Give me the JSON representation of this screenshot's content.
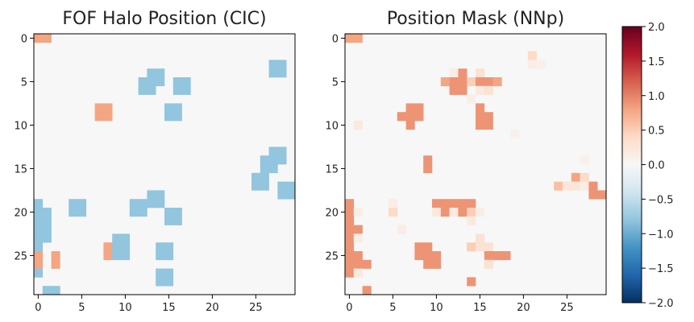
{
  "chart_data": [
    {
      "type": "heatmap",
      "title": "FOF Halo Position (CIC)",
      "shape": [
        30,
        30
      ],
      "background_value": 0,
      "x_ticks": [
        "0",
        "5",
        "10",
        "15",
        "20",
        "25"
      ],
      "y_ticks": [
        "0",
        "5",
        "10",
        "15",
        "20",
        "25"
      ],
      "cells": [
        {
          "row": 0,
          "col": 0,
          "value": 0.8
        },
        {
          "row": 0,
          "col": 1,
          "value": 0.8
        },
        {
          "row": 3,
          "col": 27,
          "value": -0.8
        },
        {
          "row": 3,
          "col": 28,
          "value": -0.8
        },
        {
          "row": 4,
          "col": 13,
          "value": -0.8
        },
        {
          "row": 4,
          "col": 14,
          "value": -0.8
        },
        {
          "row": 4,
          "col": 27,
          "value": -0.8
        },
        {
          "row": 4,
          "col": 28,
          "value": -0.8
        },
        {
          "row": 5,
          "col": 12,
          "value": -0.8
        },
        {
          "row": 5,
          "col": 13,
          "value": -0.8
        },
        {
          "row": 5,
          "col": 14,
          "value": -0.8
        },
        {
          "row": 5,
          "col": 16,
          "value": -0.8
        },
        {
          "row": 5,
          "col": 17,
          "value": -0.8
        },
        {
          "row": 6,
          "col": 12,
          "value": -0.8
        },
        {
          "row": 6,
          "col": 13,
          "value": -0.8
        },
        {
          "row": 6,
          "col": 16,
          "value": -0.8
        },
        {
          "row": 6,
          "col": 17,
          "value": -0.8
        },
        {
          "row": 8,
          "col": 7,
          "value": 0.8
        },
        {
          "row": 8,
          "col": 8,
          "value": 0.8
        },
        {
          "row": 8,
          "col": 15,
          "value": -0.8
        },
        {
          "row": 8,
          "col": 16,
          "value": -0.8
        },
        {
          "row": 9,
          "col": 7,
          "value": 0.8
        },
        {
          "row": 9,
          "col": 8,
          "value": 0.8
        },
        {
          "row": 9,
          "col": 15,
          "value": -0.8
        },
        {
          "row": 9,
          "col": 16,
          "value": -0.8
        },
        {
          "row": 13,
          "col": 27,
          "value": -0.8
        },
        {
          "row": 13,
          "col": 28,
          "value": -0.8
        },
        {
          "row": 14,
          "col": 26,
          "value": -0.8
        },
        {
          "row": 14,
          "col": 27,
          "value": -0.8
        },
        {
          "row": 14,
          "col": 28,
          "value": -0.8
        },
        {
          "row": 15,
          "col": 26,
          "value": -0.8
        },
        {
          "row": 15,
          "col": 27,
          "value": -0.8
        },
        {
          "row": 16,
          "col": 25,
          "value": -0.8
        },
        {
          "row": 16,
          "col": 26,
          "value": -0.8
        },
        {
          "row": 17,
          "col": 25,
          "value": -0.8
        },
        {
          "row": 17,
          "col": 26,
          "value": -0.8
        },
        {
          "row": 17,
          "col": 28,
          "value": -0.8
        },
        {
          "row": 17,
          "col": 29,
          "value": -0.8
        },
        {
          "row": 18,
          "col": 13,
          "value": -0.8
        },
        {
          "row": 18,
          "col": 14,
          "value": -0.8
        },
        {
          "row": 18,
          "col": 28,
          "value": -0.8
        },
        {
          "row": 18,
          "col": 29,
          "value": -0.8
        },
        {
          "row": 19,
          "col": 0,
          "value": -0.8
        },
        {
          "row": 19,
          "col": 4,
          "value": -0.8
        },
        {
          "row": 19,
          "col": 5,
          "value": -0.8
        },
        {
          "row": 19,
          "col": 11,
          "value": -0.8
        },
        {
          "row": 19,
          "col": 12,
          "value": -0.8
        },
        {
          "row": 19,
          "col": 13,
          "value": -0.8
        },
        {
          "row": 19,
          "col": 14,
          "value": -0.8
        },
        {
          "row": 20,
          "col": 0,
          "value": -0.8
        },
        {
          "row": 20,
          "col": 1,
          "value": -0.8
        },
        {
          "row": 20,
          "col": 4,
          "value": -0.8
        },
        {
          "row": 20,
          "col": 5,
          "value": -0.8
        },
        {
          "row": 20,
          "col": 11,
          "value": -0.8
        },
        {
          "row": 20,
          "col": 12,
          "value": -0.8
        },
        {
          "row": 20,
          "col": 15,
          "value": -0.8
        },
        {
          "row": 20,
          "col": 16,
          "value": -0.8
        },
        {
          "row": 21,
          "col": 0,
          "value": -0.8
        },
        {
          "row": 21,
          "col": 1,
          "value": -0.8
        },
        {
          "row": 21,
          "col": 15,
          "value": -0.8
        },
        {
          "row": 21,
          "col": 16,
          "value": -0.8
        },
        {
          "row": 22,
          "col": 0,
          "value": -0.8
        },
        {
          "row": 22,
          "col": 1,
          "value": -0.8
        },
        {
          "row": 23,
          "col": 0,
          "value": -0.8
        },
        {
          "row": 23,
          "col": 1,
          "value": -0.8
        },
        {
          "row": 23,
          "col": 9,
          "value": -0.8
        },
        {
          "row": 23,
          "col": 10,
          "value": -0.8
        },
        {
          "row": 24,
          "col": 0,
          "value": -0.8
        },
        {
          "row": 24,
          "col": 8,
          "value": 0.8
        },
        {
          "row": 24,
          "col": 9,
          "value": -0.8
        },
        {
          "row": 24,
          "col": 10,
          "value": -0.8
        },
        {
          "row": 24,
          "col": 14,
          "value": -0.8
        },
        {
          "row": 24,
          "col": 15,
          "value": -0.8
        },
        {
          "row": 25,
          "col": 0,
          "value": 0.8
        },
        {
          "row": 25,
          "col": 2,
          "value": 0.8
        },
        {
          "row": 25,
          "col": 8,
          "value": 0.8
        },
        {
          "row": 25,
          "col": 9,
          "value": -0.8
        },
        {
          "row": 25,
          "col": 10,
          "value": -0.8
        },
        {
          "row": 25,
          "col": 14,
          "value": -0.8
        },
        {
          "row": 25,
          "col": 15,
          "value": -0.8
        },
        {
          "row": 26,
          "col": 0,
          "value": 0.8
        },
        {
          "row": 26,
          "col": 2,
          "value": 0.8
        },
        {
          "row": 27,
          "col": 0,
          "value": -0.8
        },
        {
          "row": 27,
          "col": 14,
          "value": -0.8
        },
        {
          "row": 27,
          "col": 15,
          "value": -0.8
        },
        {
          "row": 28,
          "col": 14,
          "value": -0.8
        },
        {
          "row": 28,
          "col": 15,
          "value": -0.8
        },
        {
          "row": 29,
          "col": 1,
          "value": -0.8
        },
        {
          "row": 29,
          "col": 2,
          "value": -0.8
        }
      ]
    },
    {
      "type": "heatmap",
      "title": "Position Mask (NNp)",
      "shape": [
        30,
        30
      ],
      "background_value": 0,
      "x_ticks": [
        "0",
        "5",
        "10",
        "15",
        "20",
        "25"
      ],
      "y_ticks": [
        "0",
        "5",
        "10",
        "15",
        "20",
        "25"
      ],
      "cells": [
        {
          "row": 0,
          "col": 0,
          "value": 0.8
        },
        {
          "row": 0,
          "col": 1,
          "value": 0.8
        },
        {
          "row": 2,
          "col": 21,
          "value": 0.4
        },
        {
          "row": 3,
          "col": 21,
          "value": 0.15
        },
        {
          "row": 3,
          "col": 22,
          "value": 0.1
        },
        {
          "row": 4,
          "col": 12,
          "value": 0.15
        },
        {
          "row": 4,
          "col": 13,
          "value": 0.9
        },
        {
          "row": 4,
          "col": 15,
          "value": 0.3
        },
        {
          "row": 5,
          "col": 11,
          "value": 0.8
        },
        {
          "row": 5,
          "col": 12,
          "value": 0.9
        },
        {
          "row": 5,
          "col": 13,
          "value": 0.9
        },
        {
          "row": 5,
          "col": 14,
          "value": 0.5
        },
        {
          "row": 5,
          "col": 15,
          "value": 0.9
        },
        {
          "row": 5,
          "col": 16,
          "value": 0.9
        },
        {
          "row": 5,
          "col": 17,
          "value": 0.8
        },
        {
          "row": 6,
          "col": 12,
          "value": 0.9
        },
        {
          "row": 6,
          "col": 13,
          "value": 0.9
        },
        {
          "row": 6,
          "col": 15,
          "value": 0.2
        },
        {
          "row": 6,
          "col": 16,
          "value": 0.3
        },
        {
          "row": 7,
          "col": 14,
          "value": 0.15
        },
        {
          "row": 8,
          "col": 7,
          "value": 0.9
        },
        {
          "row": 8,
          "col": 8,
          "value": 0.9
        },
        {
          "row": 8,
          "col": 15,
          "value": 0.9
        },
        {
          "row": 9,
          "col": 6,
          "value": 0.9
        },
        {
          "row": 9,
          "col": 7,
          "value": 0.9
        },
        {
          "row": 9,
          "col": 8,
          "value": 0.9
        },
        {
          "row": 9,
          "col": 15,
          "value": 0.9
        },
        {
          "row": 9,
          "col": 16,
          "value": 0.9
        },
        {
          "row": 10,
          "col": 1,
          "value": 0.2
        },
        {
          "row": 10,
          "col": 7,
          "value": 0.9
        },
        {
          "row": 10,
          "col": 15,
          "value": 0.9
        },
        {
          "row": 10,
          "col": 16,
          "value": 0.9
        },
        {
          "row": 11,
          "col": 19,
          "value": 0.1
        },
        {
          "row": 14,
          "col": 9,
          "value": 0.9
        },
        {
          "row": 14,
          "col": 27,
          "value": 0.1
        },
        {
          "row": 15,
          "col": 9,
          "value": 0.9
        },
        {
          "row": 16,
          "col": 26,
          "value": 0.8
        },
        {
          "row": 16,
          "col": 27,
          "value": 0.4
        },
        {
          "row": 17,
          "col": 24,
          "value": 0.6
        },
        {
          "row": 17,
          "col": 25,
          "value": 0.25
        },
        {
          "row": 17,
          "col": 26,
          "value": 0.25
        },
        {
          "row": 17,
          "col": 27,
          "value": 0.15
        },
        {
          "row": 17,
          "col": 28,
          "value": 0.9
        },
        {
          "row": 18,
          "col": 28,
          "value": 0.9
        },
        {
          "row": 18,
          "col": 29,
          "value": 0.9
        },
        {
          "row": 19,
          "col": 0,
          "value": 0.9
        },
        {
          "row": 19,
          "col": 5,
          "value": 0.15
        },
        {
          "row": 19,
          "col": 10,
          "value": 0.9
        },
        {
          "row": 19,
          "col": 11,
          "value": 0.9
        },
        {
          "row": 19,
          "col": 12,
          "value": 0.9
        },
        {
          "row": 19,
          "col": 13,
          "value": 0.9
        },
        {
          "row": 19,
          "col": 14,
          "value": 0.9
        },
        {
          "row": 20,
          "col": 0,
          "value": 0.9
        },
        {
          "row": 20,
          "col": 1,
          "value": 0.15
        },
        {
          "row": 20,
          "col": 5,
          "value": 0.4
        },
        {
          "row": 20,
          "col": 10,
          "value": 0.2
        },
        {
          "row": 20,
          "col": 11,
          "value": 0.9
        },
        {
          "row": 20,
          "col": 12,
          "value": 0.2
        },
        {
          "row": 20,
          "col": 13,
          "value": 0.9
        },
        {
          "row": 20,
          "col": 14,
          "value": 0.5
        },
        {
          "row": 20,
          "col": 15,
          "value": 0.15
        },
        {
          "row": 21,
          "col": 0,
          "value": 0.9
        },
        {
          "row": 21,
          "col": 14,
          "value": 0.2
        },
        {
          "row": 22,
          "col": 0,
          "value": 0.9
        },
        {
          "row": 22,
          "col": 1,
          "value": 0.9
        },
        {
          "row": 22,
          "col": 6,
          "value": 0.15
        },
        {
          "row": 23,
          "col": 0,
          "value": 0.9
        },
        {
          "row": 23,
          "col": 1,
          "value": 0.15
        },
        {
          "row": 23,
          "col": 15,
          "value": 0.3
        },
        {
          "row": 24,
          "col": 0,
          "value": 0.9
        },
        {
          "row": 24,
          "col": 8,
          "value": 0.9
        },
        {
          "row": 24,
          "col": 9,
          "value": 0.9
        },
        {
          "row": 24,
          "col": 14,
          "value": 0.5
        },
        {
          "row": 24,
          "col": 15,
          "value": 0.3
        },
        {
          "row": 24,
          "col": 16,
          "value": 0.3
        },
        {
          "row": 25,
          "col": 0,
          "value": 0.9
        },
        {
          "row": 25,
          "col": 1,
          "value": 0.9
        },
        {
          "row": 25,
          "col": 8,
          "value": 0.9
        },
        {
          "row": 25,
          "col": 9,
          "value": 0.9
        },
        {
          "row": 25,
          "col": 10,
          "value": 0.9
        },
        {
          "row": 25,
          "col": 16,
          "value": 0.9
        },
        {
          "row": 25,
          "col": 17,
          "value": 0.9
        },
        {
          "row": 25,
          "col": 18,
          "value": 0.9
        },
        {
          "row": 26,
          "col": 0,
          "value": 0.9
        },
        {
          "row": 26,
          "col": 1,
          "value": 0.9
        },
        {
          "row": 26,
          "col": 2,
          "value": 0.9
        },
        {
          "row": 26,
          "col": 9,
          "value": 0.9
        },
        {
          "row": 26,
          "col": 10,
          "value": 0.9
        },
        {
          "row": 26,
          "col": 16,
          "value": 0.3
        },
        {
          "row": 27,
          "col": 0,
          "value": 0.9
        },
        {
          "row": 27,
          "col": 1,
          "value": 0.2
        },
        {
          "row": 28,
          "col": 14,
          "value": 0.9
        },
        {
          "row": 29,
          "col": 2,
          "value": 0.9
        }
      ]
    }
  ],
  "colorbar": {
    "min": -2.0,
    "max": 2.0,
    "ticks": [
      "2.0",
      "1.5",
      "1.0",
      "0.5",
      "0.0",
      "−0.5",
      "−1.0",
      "−1.5",
      "−2.0"
    ],
    "colormap": "RdBu_r",
    "colors": {
      "low": "#053061",
      "mid": "#f7f7f7",
      "high": "#67001f"
    }
  }
}
